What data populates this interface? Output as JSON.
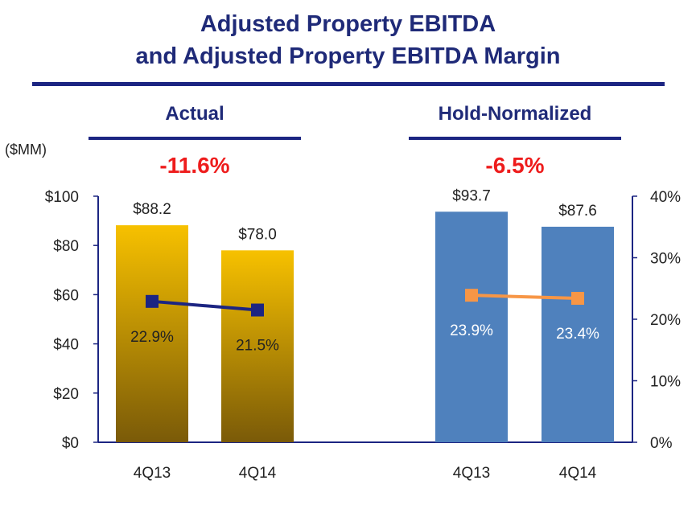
{
  "title_line1": "Adjusted Property EBITDA",
  "title_line2": "and Adjusted Property EBITDA Margin",
  "units_label": "($MM)",
  "colors": {
    "navy": "#1c2582",
    "gold_top": "#f7c100",
    "gold_bottom": "#7a5a08",
    "blue_bar": "#4f81bd",
    "orange_line": "#f79646",
    "red": "#ee1c1c"
  },
  "chart_data": {
    "type": "bar",
    "left_axis": {
      "ylim": [
        0,
        100
      ],
      "ticks": [
        "$0",
        "$20",
        "$40",
        "$60",
        "$80",
        "$100"
      ]
    },
    "right_axis": {
      "ylim": [
        0,
        40
      ],
      "ticks": [
        "0%",
        "10%",
        "20%",
        "30%",
        "40%"
      ]
    },
    "panels": [
      {
        "title": "Actual",
        "change_label": "-11.6%",
        "categories": [
          "4Q13",
          "4Q14"
        ],
        "values": [
          88.2,
          78.0
        ],
        "value_labels": [
          "$88.2",
          "$78.0"
        ],
        "margins": [
          22.9,
          21.5
        ],
        "margin_labels": [
          "22.9%",
          "21.5%"
        ]
      },
      {
        "title": "Hold-Normalized",
        "change_label": "-6.5%",
        "categories": [
          "4Q13",
          "4Q14"
        ],
        "values": [
          93.7,
          87.6
        ],
        "value_labels": [
          "$93.7",
          "$87.6"
        ],
        "margins": [
          23.9,
          23.4
        ],
        "margin_labels": [
          "23.9%",
          "23.4%"
        ]
      }
    ]
  }
}
